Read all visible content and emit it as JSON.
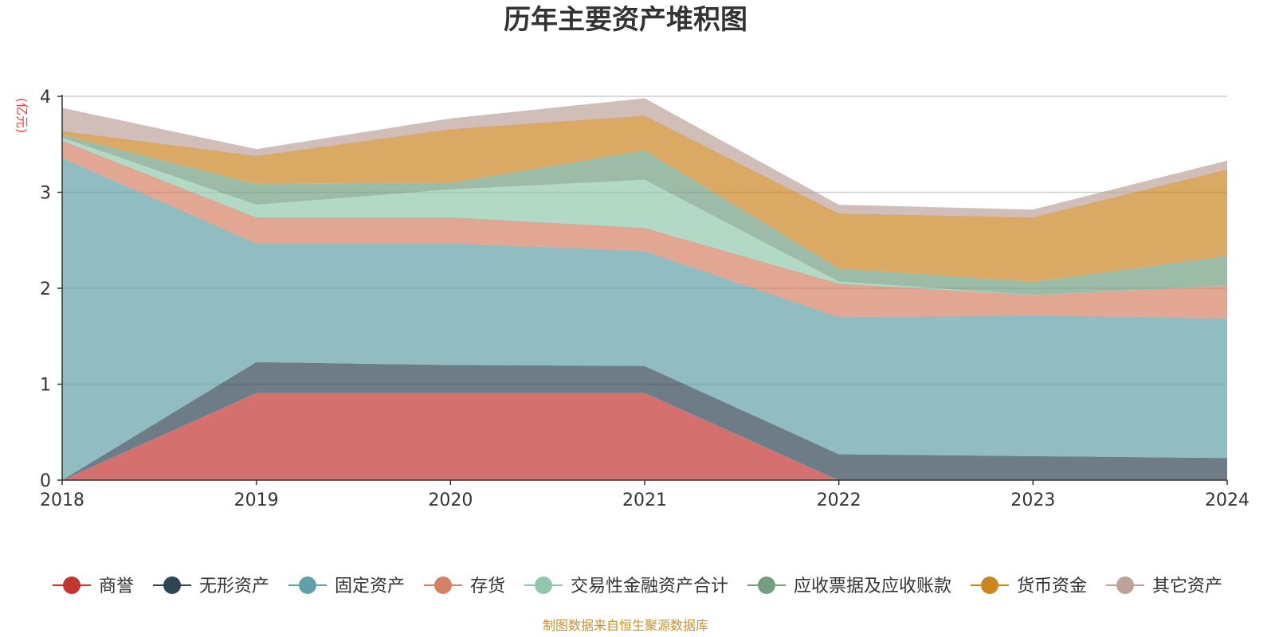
{
  "chart_data": {
    "type": "area",
    "stacked": true,
    "title": "历年主要资产堆积图",
    "unit_label": "亿元",
    "source": "制图数据来自恒生聚源数据库",
    "x": [
      "2018",
      "2019",
      "2020",
      "2021",
      "2022",
      "2023",
      "2024"
    ],
    "ylim": [
      0,
      4
    ],
    "yticks": [
      "0",
      "1",
      "2",
      "3",
      "4"
    ],
    "grid": true,
    "legend_position": "bottom",
    "series": [
      {
        "name": "商誉",
        "color": "#c23531",
        "values": [
          0,
          0.91,
          0.91,
          0.91,
          0,
          0,
          0
        ]
      },
      {
        "name": "无形资产",
        "color": "#2f4554",
        "values": [
          0,
          0.32,
          0.29,
          0.28,
          0.27,
          0.25,
          0.23
        ]
      },
      {
        "name": "固定资产",
        "color": "#61a0a8",
        "values": [
          3.36,
          1.24,
          1.27,
          1.2,
          1.43,
          1.47,
          1.46
        ]
      },
      {
        "name": "存货",
        "color": "#d48265",
        "values": [
          0.18,
          0.27,
          0.27,
          0.24,
          0.35,
          0.21,
          0.34
        ]
      },
      {
        "name": "交易性金融资产合计",
        "color": "#91c7ae",
        "values": [
          0.03,
          0.13,
          0.29,
          0.5,
          0.02,
          0,
          0
        ]
      },
      {
        "name": "应收票据及应收账款",
        "color": "#749f83",
        "values": [
          0.03,
          0.22,
          0.07,
          0.31,
          0.14,
          0.14,
          0.31
        ]
      },
      {
        "name": "货币资金",
        "color": "#ca8622",
        "values": [
          0.04,
          0.29,
          0.56,
          0.36,
          0.57,
          0.67,
          0.9
        ]
      },
      {
        "name": "其它资产",
        "color": "#bda29a",
        "values": [
          0.24,
          0.07,
          0.11,
          0.18,
          0.09,
          0.08,
          0.09
        ]
      }
    ]
  }
}
